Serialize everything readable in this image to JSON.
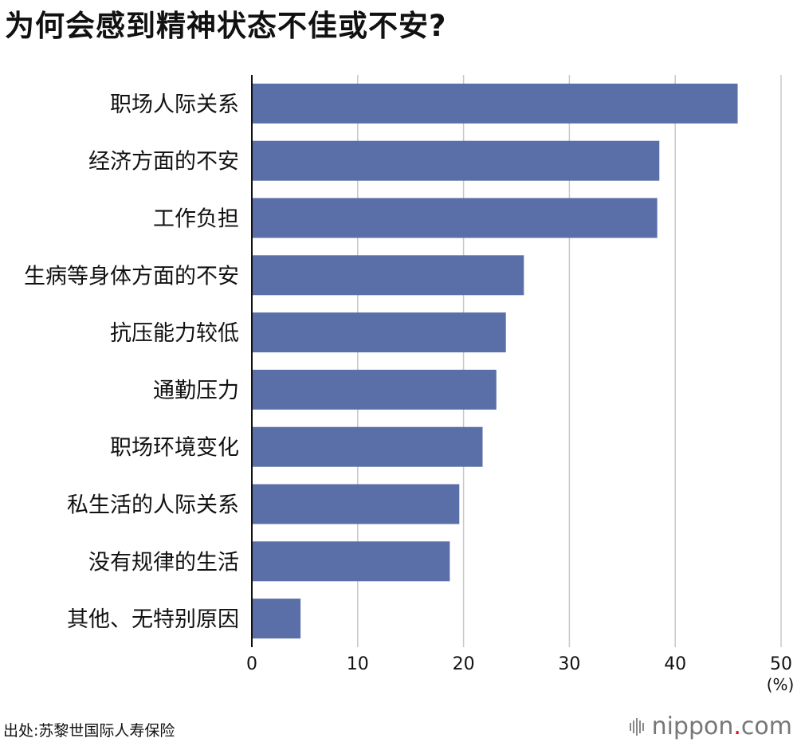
{
  "title": "为何会感到精神状态不佳或不安?",
  "source": "出处:苏黎世国际人寿保险",
  "logo": {
    "name": "nippon",
    "dot": ".",
    "tld": "com"
  },
  "chart_data": {
    "type": "bar",
    "orientation": "horizontal",
    "categories": [
      "职场人际关系",
      "经济方面的不安",
      "工作负担",
      "生病等身体方面的不安",
      "抗压能力较低",
      "通勤压力",
      "职场环境变化",
      "私生活的人际关系",
      "没有规律的生活",
      "其他、无特别原因"
    ],
    "values": [
      45.9,
      38.5,
      38.3,
      25.7,
      24.0,
      23.1,
      21.8,
      19.6,
      18.7,
      4.6
    ],
    "xlim": [
      0,
      50
    ],
    "ticks": [
      0,
      10,
      20,
      30,
      40,
      50
    ],
    "unit": "(%)",
    "bar_color": "#5a6ea8",
    "grid": true
  }
}
